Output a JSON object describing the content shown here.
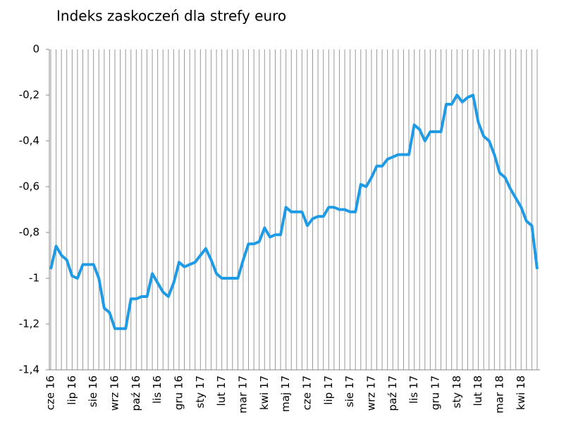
{
  "chart_data": {
    "type": "line",
    "title": "Indeks zaskoczeń dla strefy euro",
    "categories": [
      "cze 16",
      null,
      null,
      null,
      "lip 16",
      null,
      null,
      null,
      "sie 16",
      null,
      null,
      null,
      "wrz 16",
      null,
      null,
      null,
      "paź 16",
      null,
      null,
      null,
      "lis 16",
      null,
      null,
      null,
      "gru 16",
      null,
      null,
      null,
      "sty 17",
      null,
      null,
      null,
      "lut 17",
      null,
      null,
      null,
      "mar 17",
      null,
      null,
      null,
      "kwi 17",
      null,
      null,
      null,
      "maj 17",
      null,
      null,
      null,
      "cze 17",
      null,
      null,
      null,
      "lip 17",
      null,
      null,
      null,
      "sie 17",
      null,
      null,
      null,
      "wrz 17",
      null,
      null,
      null,
      "paź 17",
      null,
      null,
      null,
      "lis 17",
      null,
      null,
      null,
      "gru 17",
      null,
      null,
      null,
      "sty 18",
      null,
      null,
      null,
      "lut 18",
      null,
      null,
      null,
      "mar 18",
      null,
      null,
      null,
      "kwi 18",
      null,
      null,
      null
    ],
    "values": [
      -0.96,
      -0.86,
      -0.9,
      -0.92,
      -0.99,
      -1.0,
      -0.94,
      -0.94,
      -0.94,
      -1.0,
      -1.13,
      -1.15,
      -1.22,
      -1.22,
      -1.22,
      -1.09,
      -1.09,
      -1.08,
      -1.08,
      -0.98,
      -1.02,
      -1.06,
      -1.08,
      -1.02,
      -0.93,
      -0.95,
      -0.94,
      -0.93,
      -0.9,
      -0.87,
      -0.92,
      -0.98,
      -1.0,
      -1.0,
      -1.0,
      -1.0,
      -0.92,
      -0.85,
      -0.85,
      -0.84,
      -0.78,
      -0.82,
      -0.81,
      -0.81,
      -0.69,
      -0.71,
      -0.71,
      -0.71,
      -0.77,
      -0.74,
      -0.73,
      -0.73,
      -0.69,
      -0.69,
      -0.7,
      -0.7,
      -0.71,
      -0.71,
      -0.59,
      -0.6,
      -0.56,
      -0.51,
      -0.51,
      -0.48,
      -0.47,
      -0.46,
      -0.46,
      -0.46,
      -0.33,
      -0.35,
      -0.4,
      -0.36,
      -0.36,
      -0.36,
      -0.24,
      -0.24,
      -0.2,
      -0.23,
      -0.21,
      -0.2,
      -0.32,
      -0.38,
      -0.4,
      -0.46,
      -0.54,
      -0.56,
      -0.61,
      -0.65,
      -0.69,
      -0.75,
      -0.77,
      -0.96
    ],
    "color": "#1f9be6",
    "ylim": [
      -1.4,
      0
    ],
    "yticks": [
      0,
      {
        "value": -0.2,
        "label": "-0,2"
      },
      {
        "value": -0.4,
        "label": "-0,4"
      },
      {
        "value": -0.6,
        "label": "-0,6"
      },
      {
        "value": -0.8,
        "label": "-0,8"
      },
      -1,
      {
        "value": -1.2,
        "label": "-1,2"
      },
      {
        "value": -1.4,
        "label": "-1,4"
      }
    ],
    "grid": true
  }
}
